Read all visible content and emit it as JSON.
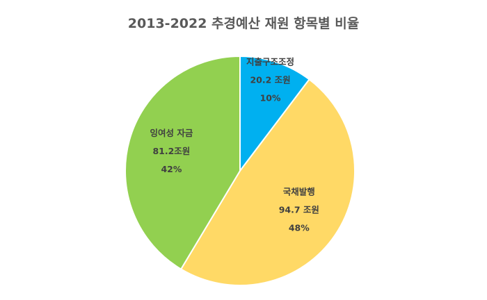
{
  "chart_data": {
    "type": "pie",
    "title": "2013-2022 추경예산 재원 항목별 비율",
    "categories": [
      "지출구조조정",
      "국채발행",
      "잉여성 자금"
    ],
    "values": [
      20.2,
      94.7,
      81.2
    ],
    "value_labels": [
      "20.2 조원",
      "94.7 조원",
      "81.2조원"
    ],
    "percent_labels": [
      "10%",
      "48%",
      "42%"
    ],
    "colors": [
      "#00B0F0",
      "#FFD966",
      "#92D050"
    ],
    "start": "12 o'clock",
    "direction": "clockwise",
    "legend": "none"
  }
}
